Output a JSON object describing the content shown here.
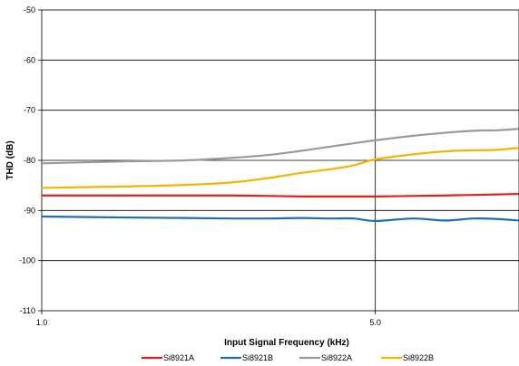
{
  "chart_data": {
    "type": "line",
    "xlabel": "Input Signal Frequency (kHz)",
    "ylabel": "THD (dB)",
    "x_scale": "log",
    "xlim": [
      1.0,
      10.0
    ],
    "ylim": [
      -110,
      -50
    ],
    "x_tick_labels": [
      "1.0",
      "5.0"
    ],
    "x_ticks": [
      1.0,
      5.0
    ],
    "y_ticks": [
      -50,
      -60,
      -70,
      -80,
      -90,
      -100,
      -110
    ],
    "y_tick_labels": [
      "-50",
      "-60",
      "-70",
      "-80",
      "-90",
      "-100",
      "-110"
    ],
    "grid": "horizontal major lines plus vertical line at 5.0",
    "legend_position": "bottom",
    "series": [
      {
        "name": "Si8921A",
        "color": "#e0201b",
        "x": [
          1.0,
          1.5,
          2.0,
          2.5,
          3.0,
          3.5,
          4.0,
          4.5,
          5.0,
          6.0,
          7.0,
          8.0,
          9.0,
          10.0
        ],
        "y": [
          -87.0,
          -87.0,
          -87.0,
          -87.0,
          -87.1,
          -87.2,
          -87.2,
          -87.2,
          -87.2,
          -87.1,
          -87.0,
          -86.9,
          -86.8,
          -86.7
        ]
      },
      {
        "name": "Si8921B",
        "color": "#1f6eb3",
        "x": [
          1.0,
          1.5,
          2.0,
          2.5,
          3.0,
          3.5,
          4.0,
          4.5,
          5.0,
          6.0,
          7.0,
          8.0,
          9.0,
          10.0
        ],
        "y": [
          -91.2,
          -91.4,
          -91.5,
          -91.6,
          -91.6,
          -91.5,
          -91.6,
          -91.6,
          -92.1,
          -91.6,
          -92.0,
          -91.6,
          -91.7,
          -92.0
        ]
      },
      {
        "name": "Si8922A",
        "color": "#9a9a9a",
        "x": [
          1.0,
          1.5,
          2.0,
          2.5,
          3.0,
          3.5,
          4.0,
          4.5,
          5.0,
          6.0,
          7.0,
          8.0,
          9.0,
          10.0
        ],
        "y": [
          -80.6,
          -80.2,
          -80.0,
          -79.5,
          -78.9,
          -78.1,
          -77.3,
          -76.6,
          -76.0,
          -75.1,
          -74.5,
          -74.1,
          -74.0,
          -73.7
        ]
      },
      {
        "name": "Si8922B",
        "color": "#f5b400",
        "x": [
          1.0,
          1.5,
          2.0,
          2.5,
          3.0,
          3.5,
          4.0,
          4.5,
          5.0,
          6.0,
          7.0,
          8.0,
          9.0,
          10.0
        ],
        "y": [
          -85.5,
          -85.2,
          -84.9,
          -84.4,
          -83.5,
          -82.5,
          -81.8,
          -81.0,
          -79.8,
          -78.8,
          -78.2,
          -78.0,
          -77.9,
          -77.5
        ]
      }
    ]
  }
}
